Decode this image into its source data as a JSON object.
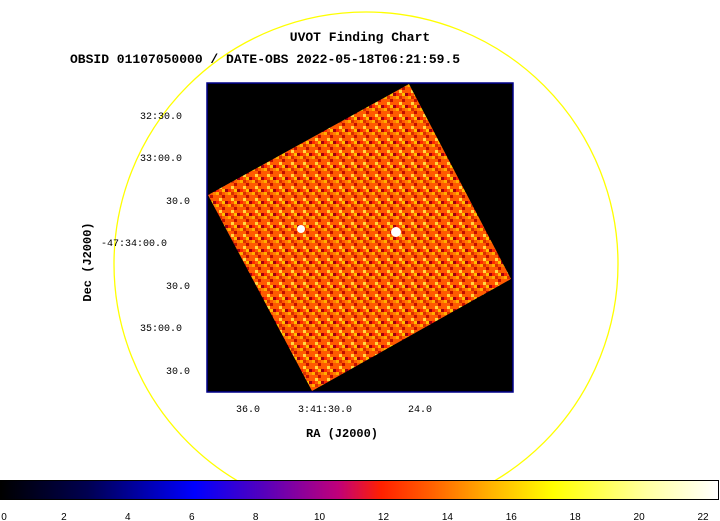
{
  "title": "UVOT Finding Chart",
  "subtitle": "OBSID 01107050000 / DATE-OBS 2022-05-18T06:21:59.5",
  "x_axis": {
    "label": "RA (J2000)",
    "ticks": [
      "36.0",
      "3:41:30.0",
      "24.0"
    ]
  },
  "y_axis": {
    "label": "Dec (J2000)",
    "ticks": [
      "32:30.0",
      "33:00.0",
      "30.0",
      "-47:34:00.0",
      "30.0",
      "35:00.0",
      "30.0"
    ]
  },
  "colorbar": {
    "ticks": [
      "0",
      "2",
      "4",
      "6",
      "8",
      "10",
      "12",
      "14",
      "16",
      "18",
      "20",
      "22"
    ],
    "range": [
      0,
      22.5
    ]
  },
  "colors": {
    "circle": "#ffff00",
    "frame": "#00008b",
    "background": "#000000"
  }
}
